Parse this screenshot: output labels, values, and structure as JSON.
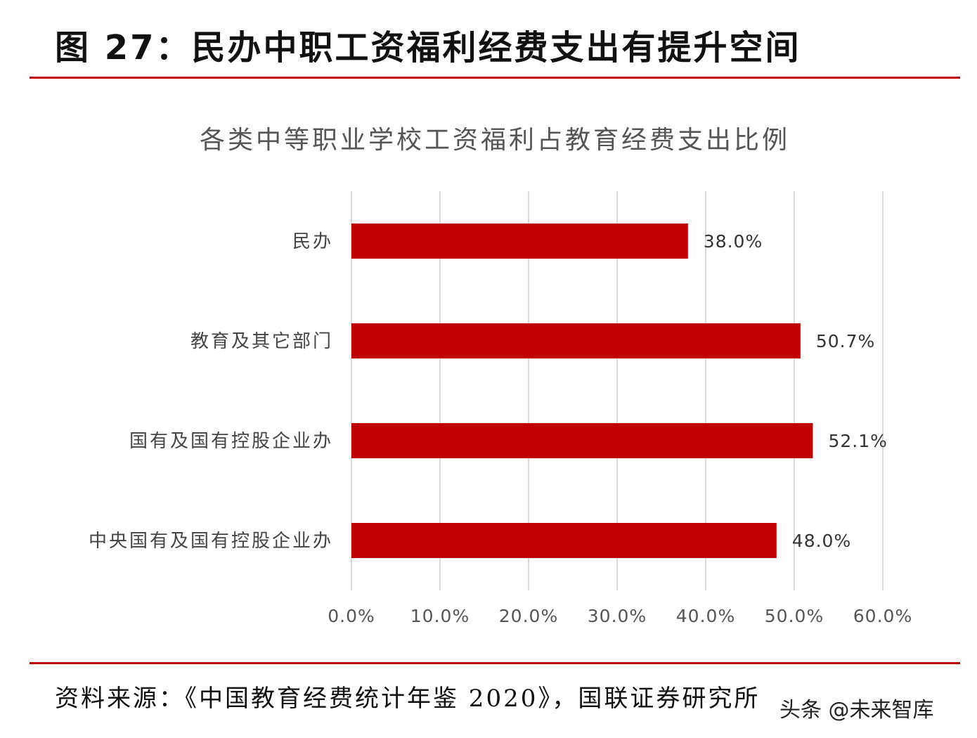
{
  "figure_title": "图 27：民办中职工资福利经费支出有提升空间",
  "source_note": "资料来源：《中国教育经费统计年鉴 2020》，国联证券研究所",
  "watermark": "头条 @未来智库",
  "colors": {
    "accent": "#c00000",
    "bar": "#c00000",
    "grid": "#d9d9d9"
  },
  "chart_data": {
    "type": "bar",
    "orientation": "horizontal",
    "title": "各类中等职业学校工资福利占教育经费支出比例",
    "categories": [
      "民办",
      "教育及其它部门",
      "国有及国有控股企业办",
      "中央国有及国有控股企业办"
    ],
    "values": [
      38.0,
      50.7,
      52.1,
      48.0
    ],
    "value_labels": [
      "38.0%",
      "50.7%",
      "52.1%",
      "48.0%"
    ],
    "xlim": [
      0,
      60
    ],
    "x_ticks": [
      0,
      10,
      20,
      30,
      40,
      50,
      60
    ],
    "x_tick_labels": [
      "0.0%",
      "10.0%",
      "20.0%",
      "30.0%",
      "40.0%",
      "50.0%",
      "60.0%"
    ],
    "grid": true,
    "legend": "none"
  }
}
